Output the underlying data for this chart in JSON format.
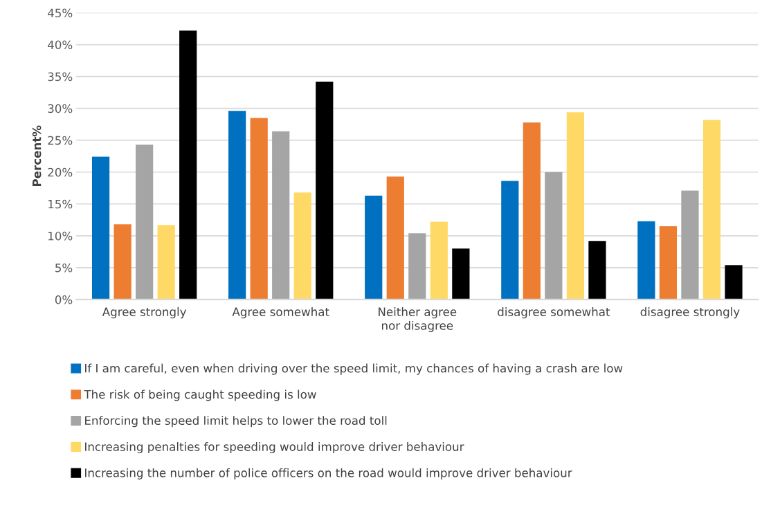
{
  "chart_data": {
    "type": "bar",
    "ylabel": "Percent%",
    "categories": [
      "Agree strongly",
      "Agree somewhat",
      "Neither agree nor disagree",
      "disagree somewhat",
      "disagree strongly"
    ],
    "series": [
      {
        "name": "If I am careful, even when driving over the speed limit, my chances of having a crash are low",
        "color": "#0070c0",
        "values": [
          22.4,
          29.6,
          16.3,
          18.6,
          12.3
        ]
      },
      {
        "name": "The risk of being caught speeding is low",
        "color": "#ed7d31",
        "values": [
          11.8,
          28.5,
          19.3,
          27.8,
          11.5
        ]
      },
      {
        "name": "Enforcing the speed limit helps to lower the road toll",
        "color": "#a5a5a5",
        "values": [
          24.3,
          26.4,
          10.4,
          20.0,
          17.1
        ]
      },
      {
        "name": "Increasing penalties for speeding would improve driver behaviour",
        "color": "#ffd966",
        "values": [
          11.7,
          16.8,
          12.2,
          29.4,
          28.2
        ]
      },
      {
        "name": "Increasing the number of police officers on the road would improve driver behaviour",
        "color": "#000000",
        "values": [
          42.2,
          34.2,
          8.0,
          9.2,
          5.4
        ]
      }
    ],
    "ylim": [
      0,
      45
    ],
    "yticks": [
      {
        "value": 0,
        "label": "0%"
      },
      {
        "value": 5,
        "label": "5%"
      },
      {
        "value": 10,
        "label": "10%"
      },
      {
        "value": 15,
        "label": "15%"
      },
      {
        "value": 20,
        "label": "20%"
      },
      {
        "value": 25,
        "label": "25%"
      },
      {
        "value": 30,
        "label": "30%"
      },
      {
        "value": 35,
        "label": "35%"
      },
      {
        "value": 40,
        "label": "40%"
      },
      {
        "value": 45,
        "label": "45%"
      }
    ],
    "grid": "y",
    "legend": "bottom"
  }
}
